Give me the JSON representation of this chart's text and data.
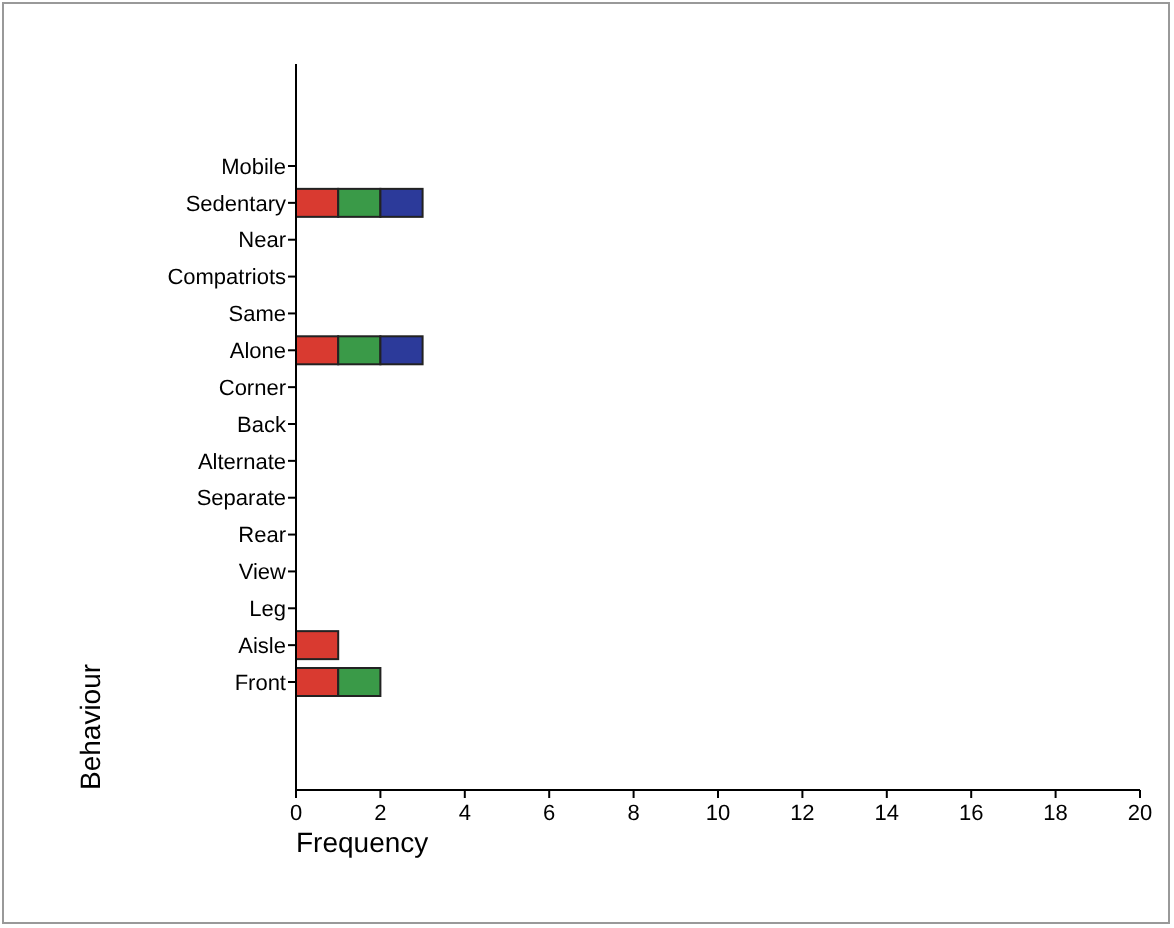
{
  "chart_data": {
    "type": "bar",
    "orientation": "horizontal",
    "stacked": true,
    "xlabel": "Frequency",
    "ylabel": "Behaviour",
    "categories": [
      "Mobile",
      "Sedentary",
      "Near",
      "Compatriots",
      "Same",
      "Alone",
      "Corner",
      "Back",
      "Alternate",
      "Separate",
      "Rear",
      "View",
      "Leg",
      "Aisle",
      "Front"
    ],
    "series": [
      {
        "color": "#d93a30",
        "values": [
          0,
          1,
          0,
          0,
          0,
          1,
          0,
          0,
          0,
          0,
          0,
          0,
          0,
          1,
          1
        ]
      },
      {
        "color": "#3a9a48",
        "values": [
          0,
          1,
          0,
          0,
          0,
          1,
          0,
          0,
          0,
          0,
          0,
          0,
          0,
          0,
          1
        ]
      },
      {
        "color": "#2c3a9a",
        "values": [
          0,
          1,
          0,
          0,
          0,
          1,
          0,
          0,
          0,
          0,
          0,
          0,
          0,
          0,
          0
        ]
      }
    ],
    "xlim": [
      0,
      20
    ],
    "xticks": [
      0,
      2,
      4,
      6,
      8,
      10,
      12,
      14,
      16,
      18,
      20
    ]
  }
}
